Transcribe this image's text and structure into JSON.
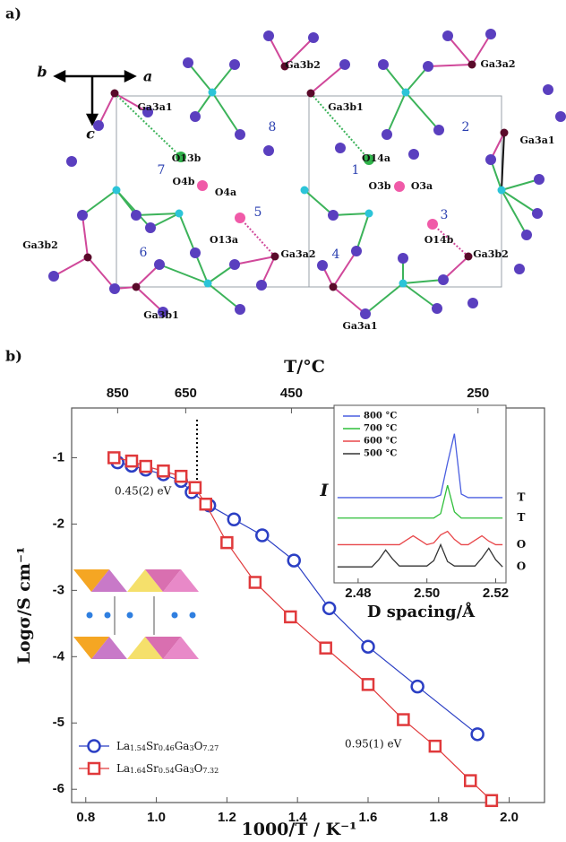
{
  "diagram": {
    "panel_label": "a)",
    "axis_labels": [
      "b",
      "a",
      "c"
    ],
    "atom_labels": [
      "Ga3b2",
      "Ga3a2",
      "Ga3a1",
      "Ga3b1",
      "Ga3a1",
      "O13b",
      "O14a",
      "O4b",
      "O4a",
      "O3b",
      "O3a",
      "O13a",
      "O14b",
      "Ga3b2",
      "Ga3a2",
      "Ga3b2",
      "Ga3b1",
      "Ga3a1"
    ],
    "ring_labels": [
      "8",
      "2",
      "7",
      "1",
      "5",
      "3",
      "6",
      "4"
    ]
  },
  "panel_b_label": "b)",
  "chart_data": [
    {
      "type": "scatter-line",
      "x_label": "1000/T / K⁻¹",
      "y_label": "Logσ/S cm⁻¹",
      "x2_label": "T/°C",
      "xlim": [
        0.76,
        2.1
      ],
      "ylim": [
        -6.2,
        -0.25
      ],
      "xticks": [
        0.8,
        {
          "value": 1,
          "label": "1.0"
        },
        1.2,
        1.4,
        1.6,
        1.8,
        {
          "value": 2,
          "label": "2.0"
        }
      ],
      "yticks": [
        -1,
        -2,
        -3,
        -4,
        -5,
        -6
      ],
      "x2ticks": [
        850,
        650,
        450,
        250
      ],
      "annotations": [
        "0.45(2) eV",
        "0.95(1) eV"
      ],
      "legend": "lower left",
      "series": [
        {
          "name": "La1.54Sr0.46Ga3O7.27",
          "color": "#2b3fc4",
          "marker": "circle",
          "x": [
            0.89,
            0.93,
            0.97,
            1.02,
            1.07,
            1.1,
            1.15,
            1.22,
            1.3,
            1.39,
            1.49,
            1.6,
            1.74,
            1.91
          ],
          "values": [
            -1.07,
            -1.12,
            -1.18,
            -1.25,
            -1.35,
            -1.52,
            -1.72,
            -1.93,
            -2.17,
            -2.55,
            -3.27,
            -3.85,
            -4.45,
            -5.17
          ]
        },
        {
          "name": "La1.64Sr0.54Ga3O7.32",
          "color": "#e0393b",
          "marker": "square",
          "x": [
            0.88,
            0.93,
            0.97,
            1.02,
            1.07,
            1.11,
            1.14,
            1.2,
            1.28,
            1.38,
            1.48,
            1.6,
            1.7,
            1.79,
            1.89,
            1.95
          ],
          "values": [
            -1,
            -1.05,
            -1.13,
            -1.2,
            -1.28,
            -1.45,
            -1.7,
            -2.28,
            -2.88,
            -3.4,
            -3.87,
            -4.42,
            -4.95,
            -5.35,
            -5.87,
            -6.17
          ]
        }
      ]
    },
    {
      "type": "line",
      "x_label": "D spacing/Å",
      "y_label": "I",
      "xlim": [
        2.473,
        2.523
      ],
      "ylim": [
        0,
        20
      ],
      "xticks": [
        2.48,
        {
          "value": 2.5,
          "label": "2.50"
        },
        2.52
      ],
      "x": [
        2.474,
        2.476,
        2.478,
        2.48,
        2.482,
        2.484,
        2.486,
        2.488,
        2.49,
        2.492,
        2.494,
        2.496,
        2.498,
        2.5,
        2.502,
        2.504,
        2.506,
        2.508,
        2.51,
        2.512,
        2.514,
        2.516,
        2.518,
        2.52,
        2.522
      ],
      "series": [
        {
          "name": "800 °C",
          "color": "#4a5ee0",
          "phase": "T",
          "values": [
            9.6,
            9.6,
            9.6,
            9.6,
            9.6,
            9.6,
            9.6,
            9.6,
            9.6,
            9.6,
            9.6,
            9.6,
            9.6,
            9.6,
            9.6,
            9.9,
            13.5,
            16.8,
            10.0,
            9.6,
            9.6,
            9.6,
            9.6,
            9.6,
            9.6
          ]
        },
        {
          "name": "700 °C",
          "color": "#2fbf3a",
          "phase": "T",
          "values": [
            7.3,
            7.3,
            7.3,
            7.3,
            7.3,
            7.3,
            7.3,
            7.3,
            7.3,
            7.3,
            7.3,
            7.3,
            7.3,
            7.3,
            7.3,
            7.8,
            11.0,
            8.0,
            7.3,
            7.3,
            7.3,
            7.3,
            7.3,
            7.3,
            7.3
          ]
        },
        {
          "name": "600 °C",
          "color": "#e8474a",
          "phase": "O",
          "values": [
            4.3,
            4.3,
            4.3,
            4.3,
            4.3,
            4.3,
            4.3,
            4.3,
            4.3,
            4.3,
            4.8,
            5.3,
            4.8,
            4.3,
            4.5,
            5.4,
            5.8,
            4.9,
            4.3,
            4.3,
            4.8,
            5.3,
            4.7,
            4.3,
            4.3
          ]
        },
        {
          "name": "500 °C",
          "color": "#333333",
          "phase": "O",
          "values": [
            1.8,
            1.8,
            1.8,
            1.8,
            1.8,
            1.8,
            2.6,
            3.7,
            2.7,
            1.9,
            1.9,
            1.9,
            1.9,
            1.9,
            2.5,
            4.3,
            2.4,
            1.9,
            1.9,
            1.9,
            1.9,
            2.8,
            3.9,
            2.6,
            1.8
          ]
        }
      ]
    }
  ]
}
